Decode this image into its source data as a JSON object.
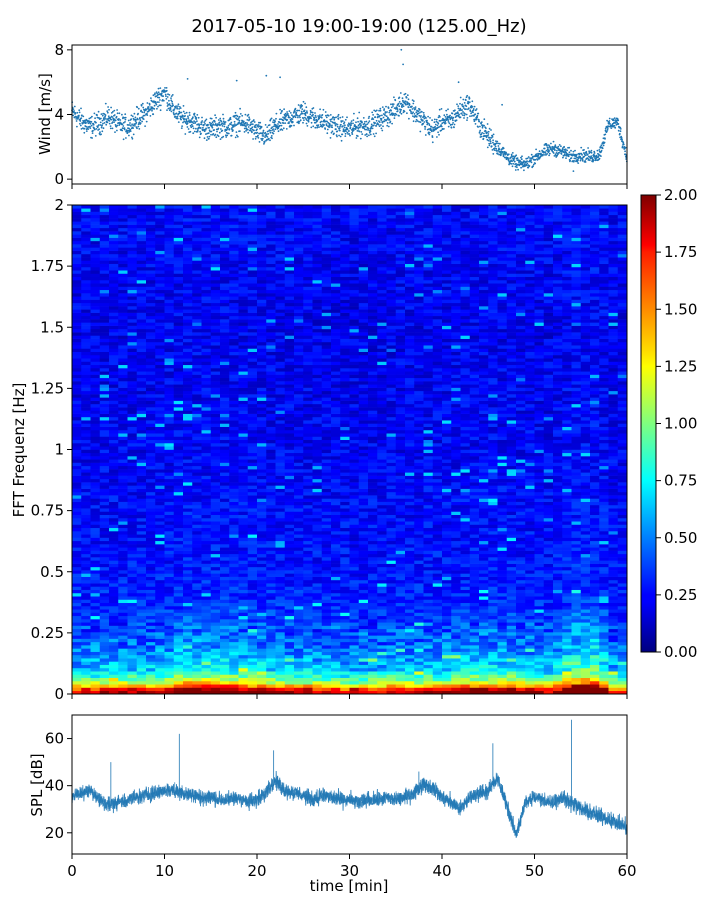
{
  "title": "2017-05-10 19:00-19:00 (125.00_Hz)",
  "chart_data": [
    {
      "id": "wind",
      "type": "scatter",
      "ylabel": "Wind [m/s]",
      "xlim": [
        0,
        60
      ],
      "ylim": [
        -0.3,
        8.3
      ],
      "yticks": [
        {
          "v": 0,
          "label": "0"
        },
        {
          "v": 4,
          "label": "4"
        },
        {
          "v": 8,
          "label": "8"
        }
      ],
      "marker_color": "#1f77b4",
      "x": [
        0,
        1,
        2,
        3,
        4,
        5,
        6,
        7,
        8,
        9,
        10,
        11,
        12,
        13,
        14,
        15,
        16,
        17,
        18,
        19,
        20,
        21,
        22,
        23,
        24,
        25,
        26,
        27,
        28,
        29,
        30,
        31,
        32,
        33,
        34,
        35,
        36,
        37,
        38,
        39,
        40,
        41,
        42,
        43,
        44,
        45,
        46,
        47,
        48,
        49,
        50,
        51,
        52,
        53,
        54,
        55,
        56,
        57,
        58,
        59,
        60
      ],
      "y": [
        4.2,
        3.6,
        3.2,
        3.5,
        3.9,
        3.4,
        3.2,
        3.7,
        4.1,
        4.8,
        5.4,
        4.3,
        3.7,
        3.6,
        3.2,
        3.1,
        3.3,
        3.2,
        3.5,
        3.4,
        2.9,
        2.6,
        3.3,
        3.6,
        3.9,
        4.1,
        3.8,
        3.6,
        3.4,
        3.2,
        3.1,
        3.3,
        3.3,
        3.6,
        3.9,
        4.3,
        4.9,
        4.2,
        3.6,
        3.0,
        3.6,
        3.6,
        4.3,
        4.6,
        3.4,
        2.6,
        2.0,
        1.4,
        1.0,
        0.9,
        1.3,
        1.7,
        1.9,
        1.7,
        1.4,
        1.5,
        1.4,
        1.5,
        3.4,
        3.5,
        1.3
      ],
      "outliers": [
        [
          12.5,
          6.2
        ],
        [
          17.8,
          6.1
        ],
        [
          21,
          6.4
        ],
        [
          22.5,
          6.3
        ],
        [
          35.6,
          8.0
        ],
        [
          35.8,
          7.1
        ],
        [
          41.8,
          6.0
        ],
        [
          46.5,
          4.6
        ],
        [
          47.2,
          1.2
        ],
        [
          54.2,
          0.5
        ]
      ]
    },
    {
      "id": "spectrogram",
      "type": "heatmap",
      "ylabel": "FFT Frequenz [Hz]",
      "xlim": [
        0,
        60
      ],
      "ylim": [
        0,
        2
      ],
      "yticks": [
        {
          "v": 0,
          "label": "0"
        },
        {
          "v": 0.25,
          "label": "0.25"
        },
        {
          "v": 0.5,
          "label": "0.5"
        },
        {
          "v": 0.75,
          "label": "0.75"
        },
        {
          "v": 1,
          "label": "1"
        },
        {
          "v": 1.25,
          "label": "1.25"
        },
        {
          "v": 1.5,
          "label": "1.5"
        },
        {
          "v": 1.75,
          "label": "1.75"
        },
        {
          "v": 2,
          "label": "2"
        }
      ],
      "colormap": "jet",
      "clim": [
        0,
        2
      ],
      "colorbar_ticks": [
        "0.00",
        "0.25",
        "0.50",
        "0.75",
        "1.00",
        "1.25",
        "1.50",
        "1.75",
        "2.00"
      ],
      "n_time_bins": 60,
      "n_freq_bins": 150,
      "freq_profile": [
        {
          "f": 0.0,
          "v": 1.9
        },
        {
          "f": 0.02,
          "v": 1.6
        },
        {
          "f": 0.05,
          "v": 0.95
        },
        {
          "f": 0.1,
          "v": 0.6
        },
        {
          "f": 0.2,
          "v": 0.42
        },
        {
          "f": 0.3,
          "v": 0.33
        },
        {
          "f": 0.5,
          "v": 0.27
        },
        {
          "f": 1.0,
          "v": 0.22
        },
        {
          "f": 1.5,
          "v": 0.2
        },
        {
          "f": 2.0,
          "v": 0.24
        }
      ],
      "time_activity": [
        {
          "t": 0,
          "v": 1.0
        },
        {
          "t": 10,
          "v": 1.1
        },
        {
          "t": 12,
          "v": 1.3
        },
        {
          "t": 15,
          "v": 1.25
        },
        {
          "t": 20,
          "v": 1.15
        },
        {
          "t": 30,
          "v": 0.95
        },
        {
          "t": 36,
          "v": 1.05
        },
        {
          "t": 40,
          "v": 1.1
        },
        {
          "t": 45,
          "v": 1.2
        },
        {
          "t": 48,
          "v": 1.15
        },
        {
          "t": 52,
          "v": 1.0
        },
        {
          "t": 54,
          "v": 1.45
        },
        {
          "t": 57,
          "v": 1.5
        },
        {
          "t": 58,
          "v": 1.0
        },
        {
          "t": 60,
          "v": 0.9
        }
      ]
    },
    {
      "id": "spl",
      "type": "line",
      "ylabel": "SPL [dB]",
      "xlabel": "time [min]",
      "xlim": [
        0,
        60
      ],
      "ylim": [
        11,
        70
      ],
      "yticks": [
        {
          "v": 20,
          "label": "20"
        },
        {
          "v": 40,
          "label": "40"
        },
        {
          "v": 60,
          "label": "60"
        }
      ],
      "xticks": [
        {
          "v": 0,
          "label": "0"
        },
        {
          "v": 10,
          "label": "10"
        },
        {
          "v": 20,
          "label": "20"
        },
        {
          "v": 30,
          "label": "30"
        },
        {
          "v": 40,
          "label": "40"
        },
        {
          "v": 50,
          "label": "50"
        },
        {
          "v": 60,
          "label": "60"
        }
      ],
      "line_color": "#1f77b4",
      "x": [
        0,
        1,
        2,
        3,
        4,
        5,
        6,
        7,
        8,
        9,
        10,
        11,
        12,
        13,
        14,
        15,
        16,
        17,
        18,
        19,
        20,
        21,
        22,
        23,
        24,
        25,
        26,
        27,
        28,
        29,
        30,
        31,
        32,
        33,
        34,
        35,
        36,
        37,
        38,
        39,
        40,
        41,
        42,
        43,
        44,
        45,
        46,
        47,
        48,
        49,
        50,
        51,
        52,
        53,
        54,
        55,
        56,
        57,
        58,
        59,
        60
      ],
      "y": [
        35,
        37,
        38,
        34,
        32,
        33,
        34,
        35,
        36,
        37,
        38,
        38,
        37,
        36,
        35,
        35,
        34,
        34,
        35,
        33,
        34,
        38,
        42,
        38,
        37,
        36,
        34,
        36,
        35,
        34,
        34,
        33,
        34,
        34,
        35,
        34,
        35,
        37,
        41,
        39,
        35,
        33,
        30,
        35,
        37,
        38,
        43,
        32,
        19,
        33,
        35,
        34,
        33,
        35,
        33,
        30,
        29,
        27,
        26,
        24,
        22
      ],
      "spikes": [
        [
          11.6,
          62
        ],
        [
          21.8,
          55
        ],
        [
          45.5,
          58
        ],
        [
          54.0,
          68
        ],
        [
          37.5,
          46
        ],
        [
          4.2,
          50
        ]
      ]
    }
  ]
}
